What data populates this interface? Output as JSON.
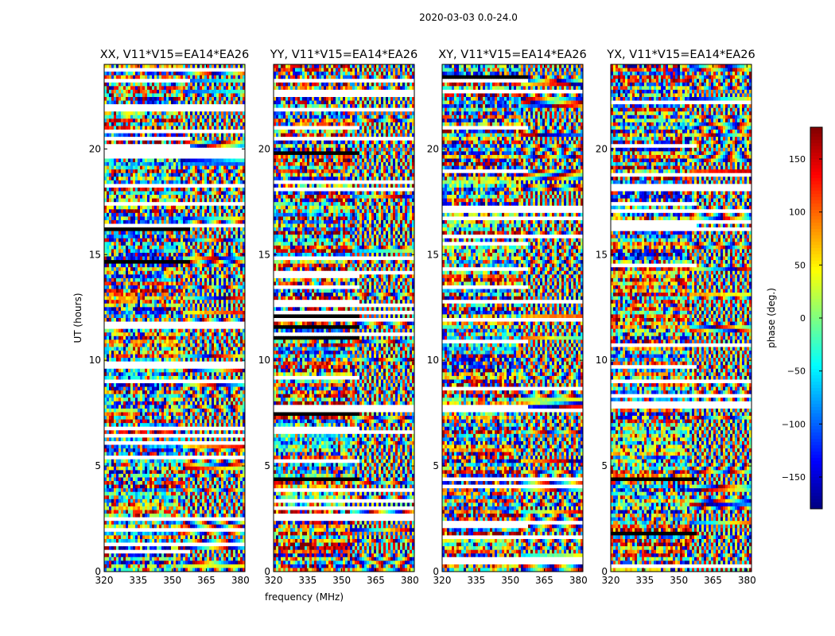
{
  "suptitle": "2020-03-03 0.0-24.0",
  "shared_xlabel": "frequency (MHz)",
  "shared_ylabel": "UT (hours)",
  "colorbar": {
    "label": "phase (deg.)",
    "range": [
      -180,
      180
    ],
    "ticks": [
      150,
      100,
      50,
      0,
      -50,
      -100,
      -150
    ],
    "tick_labels": [
      "150",
      "100",
      "50",
      "0",
      "−50",
      "−100",
      "−150"
    ],
    "colormap": "jet"
  },
  "chart_data": [
    {
      "type": "heatmap",
      "title": "XX, V11*V15=EA14*EA26",
      "xlim": [
        320,
        382
      ],
      "ylim": [
        0,
        24
      ],
      "xticks": [
        320,
        335,
        350,
        365,
        380
      ],
      "yticks": [
        0,
        5,
        10,
        15,
        20
      ],
      "xlabel": "",
      "ylabel": "UT (hours)",
      "z_quantity": "phase (deg.)",
      "z_range": [
        -180,
        180
      ]
    },
    {
      "type": "heatmap",
      "title": "YY, V11*V15=EA14*EA26",
      "xlim": [
        320,
        382
      ],
      "ylim": [
        0,
        24
      ],
      "xticks": [
        320,
        335,
        350,
        365,
        380
      ],
      "yticks": [
        0,
        5,
        10,
        15,
        20
      ],
      "xlabel": "frequency (MHz)",
      "ylabel": "",
      "z_quantity": "phase (deg.)",
      "z_range": [
        -180,
        180
      ]
    },
    {
      "type": "heatmap",
      "title": "XY, V11*V15=EA14*EA26",
      "xlim": [
        320,
        382
      ],
      "ylim": [
        0,
        24
      ],
      "xticks": [
        320,
        335,
        350,
        365,
        380
      ],
      "yticks": [
        0,
        5,
        10,
        15,
        20
      ],
      "xlabel": "",
      "ylabel": "",
      "z_quantity": "phase (deg.)",
      "z_range": [
        -180,
        180
      ]
    },
    {
      "type": "heatmap",
      "title": "YX, V11*V15=EA14*EA26",
      "xlim": [
        320,
        382
      ],
      "ylim": [
        0,
        24
      ],
      "xticks": [
        320,
        335,
        350,
        365,
        380
      ],
      "yticks": [
        0,
        5,
        10,
        15,
        20
      ],
      "xlabel": "",
      "ylabel": "",
      "z_quantity": "phase (deg.)",
      "z_range": [
        -180,
        180
      ]
    }
  ]
}
